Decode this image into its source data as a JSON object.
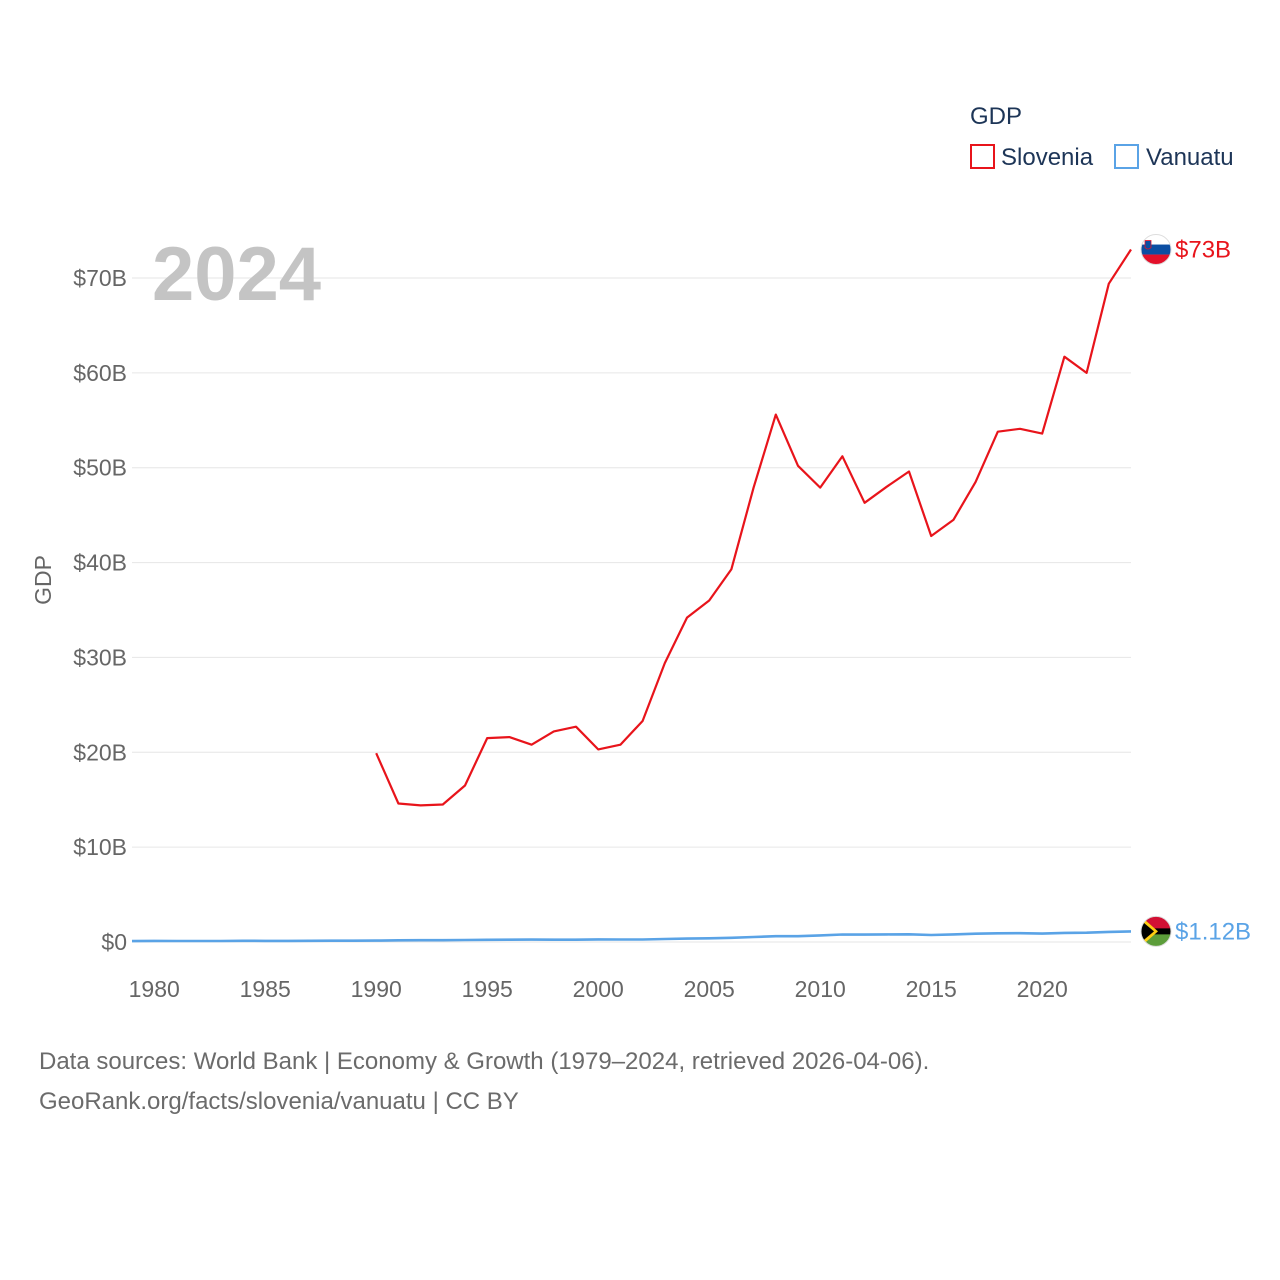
{
  "chart_data": {
    "type": "line",
    "title": "GDP",
    "ylabel": "GDP",
    "xlabel": "",
    "year_label": "2024",
    "xlim": [
      1979,
      2024
    ],
    "ylim": [
      0,
      75
    ],
    "x_ticks": [
      1980,
      1985,
      1990,
      1995,
      2000,
      2005,
      2010,
      2015,
      2020
    ],
    "y_ticks": [
      {
        "value": 0,
        "label": "$0"
      },
      {
        "value": 10,
        "label": "$10B"
      },
      {
        "value": 20,
        "label": "$20B"
      },
      {
        "value": 30,
        "label": "$30B"
      },
      {
        "value": 40,
        "label": "$40B"
      },
      {
        "value": 50,
        "label": "$50B"
      },
      {
        "value": 60,
        "label": "$60B"
      },
      {
        "value": 70,
        "label": "$70B"
      }
    ],
    "units": "billions USD",
    "legend_title": "GDP",
    "legend_position": "top-right",
    "series": [
      {
        "name": "Slovenia",
        "color": "#e8141b",
        "end_label": "$73B",
        "x": [
          1990,
          1991,
          1992,
          1993,
          1994,
          1995,
          1996,
          1997,
          1998,
          1999,
          2000,
          2001,
          2002,
          2003,
          2004,
          2005,
          2006,
          2007,
          2008,
          2009,
          2010,
          2011,
          2012,
          2013,
          2014,
          2015,
          2016,
          2017,
          2018,
          2019,
          2020,
          2021,
          2022,
          2023,
          2024
        ],
        "values": [
          19.9,
          14.6,
          14.4,
          14.5,
          16.5,
          21.5,
          21.6,
          20.8,
          22.2,
          22.7,
          20.3,
          20.8,
          23.3,
          29.4,
          34.2,
          36.0,
          39.3,
          47.9,
          55.6,
          50.2,
          47.9,
          51.2,
          46.3,
          48.0,
          49.6,
          42.8,
          44.5,
          48.5,
          53.8,
          54.1,
          53.6,
          61.7,
          60.0,
          69.4,
          73.0
        ]
      },
      {
        "name": "Vanuatu",
        "color": "#5aa3e6",
        "end_label": "$1.12B",
        "x": [
          1979,
          1980,
          1981,
          1982,
          1983,
          1984,
          1985,
          1986,
          1987,
          1988,
          1989,
          1990,
          1991,
          1992,
          1993,
          1994,
          1995,
          1996,
          1997,
          1998,
          1999,
          2000,
          2001,
          2002,
          2003,
          2004,
          2005,
          2006,
          2007,
          2008,
          2009,
          2010,
          2011,
          2012,
          2013,
          2014,
          2015,
          2016,
          2017,
          2018,
          2019,
          2020,
          2021,
          2022,
          2023,
          2024
        ],
        "values": [
          0.1,
          0.12,
          0.11,
          0.11,
          0.11,
          0.13,
          0.12,
          0.12,
          0.13,
          0.14,
          0.14,
          0.15,
          0.18,
          0.19,
          0.19,
          0.21,
          0.23,
          0.24,
          0.25,
          0.24,
          0.24,
          0.27,
          0.26,
          0.26,
          0.32,
          0.36,
          0.39,
          0.44,
          0.53,
          0.61,
          0.61,
          0.7,
          0.79,
          0.78,
          0.8,
          0.81,
          0.74,
          0.8,
          0.88,
          0.92,
          0.93,
          0.89,
          0.96,
          0.98,
          1.07,
          1.12
        ]
      }
    ]
  },
  "footer": {
    "line1": "Data sources: World Bank | Economy & Growth (1979–2024, retrieved 2026-04-06).",
    "line2": "GeoRank.org/facts/slovenia/vanuatu | CC BY"
  }
}
